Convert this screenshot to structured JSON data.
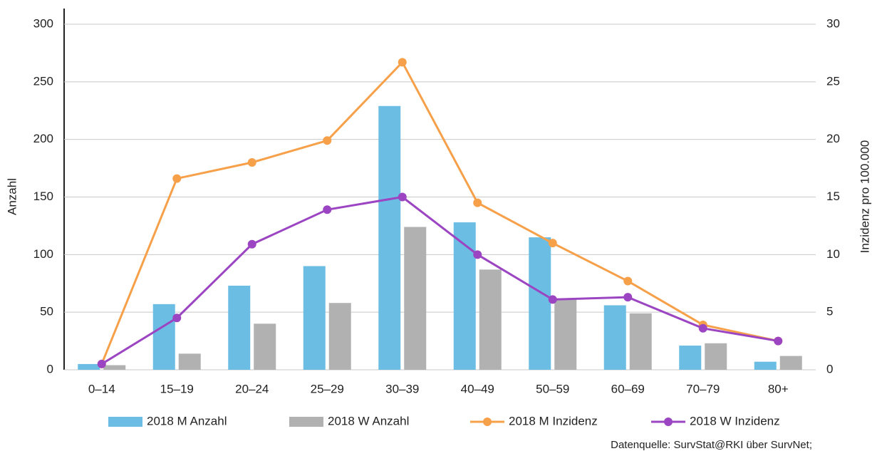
{
  "chart_data": {
    "type": "bar",
    "categories": [
      "0–14",
      "15–19",
      "20–24",
      "25–29",
      "30–39",
      "40–49",
      "50–59",
      "60–69",
      "70–79",
      "80+"
    ],
    "series": [
      {
        "name": "2018 M Anzahl",
        "type": "bar",
        "color": "#6bbde3",
        "values": [
          5,
          57,
          73,
          90,
          229,
          128,
          115,
          56,
          21,
          7
        ]
      },
      {
        "name": "2018 W Anzahl",
        "type": "bar",
        "color": "#b1b1b1",
        "values": [
          4,
          14,
          40,
          58,
          124,
          87,
          62,
          49,
          23,
          12
        ]
      },
      {
        "name": "2018 M Inzidenz",
        "type": "line",
        "axis": "y2",
        "color": "#f7a04a",
        "values": [
          0.5,
          16.6,
          18,
          19.9,
          26.7,
          14.5,
          11,
          7.7,
          3.9,
          2.5
        ]
      },
      {
        "name": "2018 W Inzidenz",
        "type": "line",
        "axis": "y2",
        "color": "#9c45c2",
        "values": [
          0.5,
          4.5,
          10.9,
          13.9,
          15,
          10,
          6.1,
          6.3,
          3.6,
          2.5
        ]
      }
    ],
    "ylabel": "Anzahl",
    "y2label": "Inzidenz pro 100.000",
    "ylim": [
      0,
      300
    ],
    "yticks": [
      0,
      50,
      100,
      150,
      200,
      250,
      300
    ],
    "y2lim": [
      0,
      30
    ],
    "y2ticks": [
      0,
      5,
      10,
      15,
      20,
      25,
      30
    ],
    "grid": true,
    "legend": "bottom",
    "source": "Datenquelle: SurvStat@RKI über SurvNet;"
  }
}
